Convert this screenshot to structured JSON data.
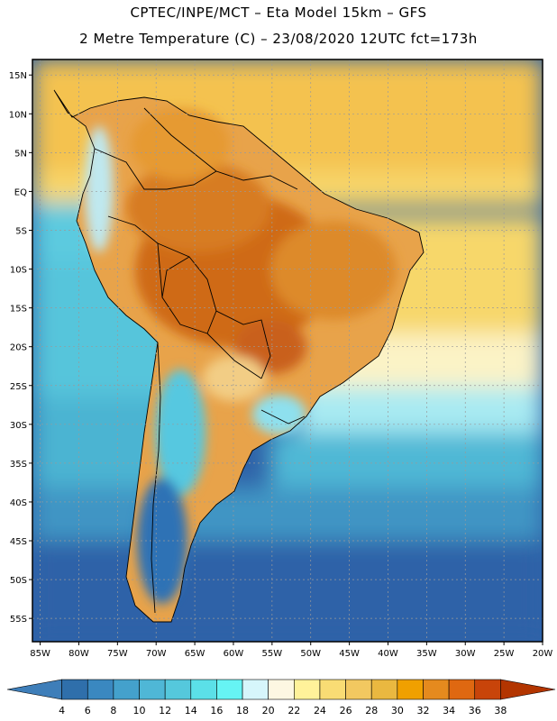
{
  "title": {
    "line1": "CPTEC/INPE/MCT –  Eta Model 15km – GFS",
    "line2": "2 Metre Temperature (C) – 23/08/2020 12UTC fct=173h"
  },
  "map": {
    "region": "South America",
    "lat_range": [
      -58,
      17
    ],
    "lon_range": [
      -86,
      -20
    ],
    "lat_ticks": [
      {
        "value": 15,
        "label": "15N"
      },
      {
        "value": 10,
        "label": "10N"
      },
      {
        "value": 5,
        "label": "5N"
      },
      {
        "value": 0,
        "label": "EQ"
      },
      {
        "value": -5,
        "label": "5S"
      },
      {
        "value": -10,
        "label": "10S"
      },
      {
        "value": -15,
        "label": "15S"
      },
      {
        "value": -20,
        "label": "20S"
      },
      {
        "value": -25,
        "label": "25S"
      },
      {
        "value": -30,
        "label": "30S"
      },
      {
        "value": -35,
        "label": "35S"
      },
      {
        "value": -40,
        "label": "40S"
      },
      {
        "value": -45,
        "label": "45S"
      },
      {
        "value": -50,
        "label": "50S"
      },
      {
        "value": -55,
        "label": "55S"
      }
    ],
    "lon_ticks": [
      {
        "value": -85,
        "label": "85W"
      },
      {
        "value": -80,
        "label": "80W"
      },
      {
        "value": -75,
        "label": "75W"
      },
      {
        "value": -70,
        "label": "70W"
      },
      {
        "value": -65,
        "label": "65W"
      },
      {
        "value": -60,
        "label": "60W"
      },
      {
        "value": -55,
        "label": "55W"
      },
      {
        "value": -50,
        "label": "50W"
      },
      {
        "value": -45,
        "label": "45W"
      },
      {
        "value": -40,
        "label": "40W"
      },
      {
        "value": -35,
        "label": "35W"
      },
      {
        "value": -30,
        "label": "30W"
      },
      {
        "value": -25,
        "label": "25W"
      },
      {
        "value": -20,
        "label": "20W"
      }
    ]
  },
  "colorbar": {
    "labels": [
      "4",
      "6",
      "8",
      "10",
      "12",
      "14",
      "16",
      "18",
      "20",
      "22",
      "24",
      "26",
      "28",
      "30",
      "32",
      "34",
      "36",
      "38"
    ],
    "colors": [
      "#3e7eb9",
      "#2f6fab",
      "#3a88c0",
      "#44a1cc",
      "#4fb7d6",
      "#55c8dc",
      "#5be0e8",
      "#66f4f4",
      "#d6f6fb",
      "#fdf7e2",
      "#fff29a",
      "#f9dc74",
      "#f2c860",
      "#eab840",
      "#f0a000",
      "#e58a1e",
      "#df6811",
      "#c8440a",
      "#b33500"
    ]
  },
  "colors": {
    "land_hot": "#d9781f",
    "land_warm": "#efb152",
    "ocean_warm": "#f7c95a",
    "ocean_cool": "#5dc7dc",
    "ocean_cold": "#2e5fa6",
    "border": "#000000"
  }
}
